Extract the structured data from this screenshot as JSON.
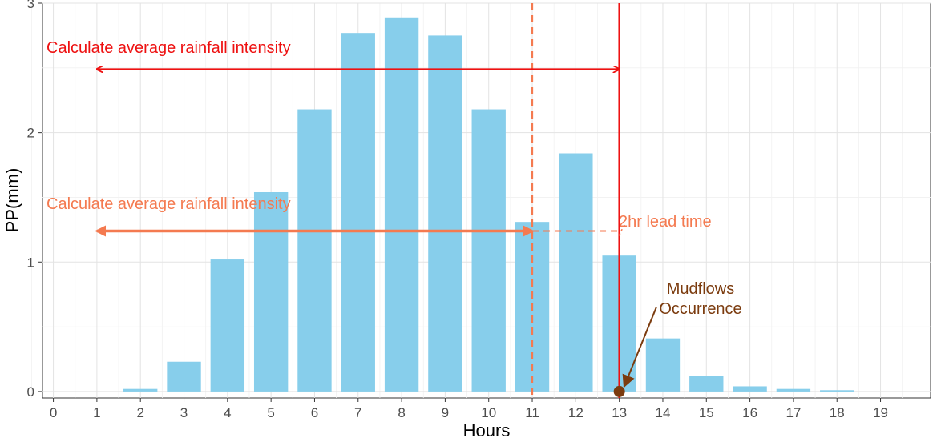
{
  "chart_data": {
    "type": "bar",
    "xlabel": "Hours",
    "ylabel": "PP(mm)",
    "xlim": [
      -0.25,
      20.15
    ],
    "ylim": [
      -0.05,
      3.0
    ],
    "x_ticks": [
      "0",
      "1",
      "2",
      "3",
      "4",
      "5",
      "6",
      "7",
      "8",
      "9",
      "10",
      "11",
      "12",
      "13",
      "14",
      "15",
      "16",
      "17",
      "18",
      "19"
    ],
    "y_ticks": [
      "0",
      "1",
      "2",
      "3"
    ],
    "grid": true,
    "bar_color": "#87CEEB",
    "categories": [
      2,
      3,
      4,
      5,
      6,
      7,
      8,
      9,
      10,
      11,
      12,
      13,
      14,
      15,
      16,
      17,
      18
    ],
    "values": [
      0.02,
      0.23,
      1.02,
      1.54,
      2.18,
      2.77,
      2.89,
      2.75,
      2.18,
      1.31,
      1.84,
      1.05,
      0.41,
      0.12,
      0.04,
      0.02,
      0.01
    ],
    "annotations": {
      "red_label": "Calculate average rainfall intensity",
      "red_color": "#EE1111",
      "red_arrow": {
        "x_from": 1,
        "x_to": 13,
        "y": 2.49
      },
      "red_vline_x": 13,
      "orange_label": "Calculate average rainfall intensity",
      "orange_color": "#F47A50",
      "orange_arrow": {
        "x_from": 1,
        "x_to": 11,
        "y": 1.24
      },
      "orange_vline_x": 11,
      "lead_label": "2hr lead time",
      "lead_line": {
        "x_from": 11,
        "x_to": 13,
        "y": 1.24
      },
      "event_label_line1": "Mudflows",
      "event_label_line2": "Occurrence",
      "event_color": "#7B3B0E",
      "event_point": {
        "x": 13,
        "y": 0
      },
      "event_text_anchor": {
        "x": 13.85,
        "y": 0.65
      }
    }
  }
}
